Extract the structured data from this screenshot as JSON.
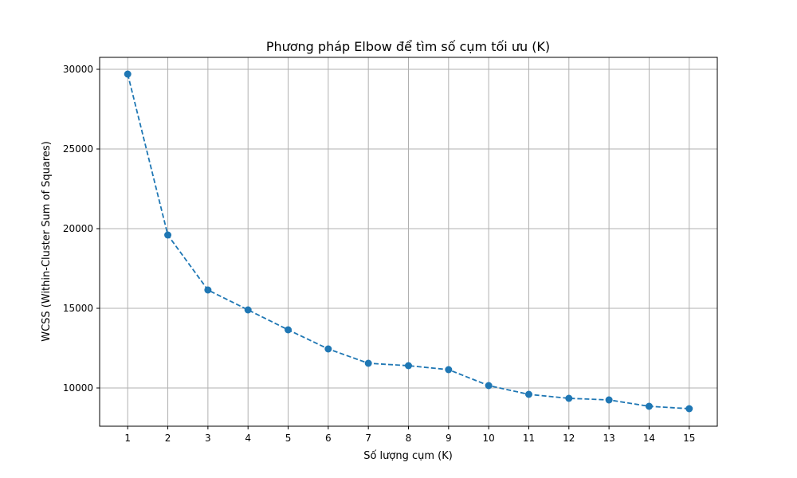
{
  "chart_data": {
    "type": "line",
    "title": "Phương pháp Elbow để tìm số cụm tối ưu (K)",
    "xlabel": "Số lượng cụm (K)",
    "ylabel": "WCSS (Within-Cluster Sum of Squares)",
    "x": [
      1,
      2,
      3,
      4,
      5,
      6,
      7,
      8,
      9,
      10,
      11,
      12,
      13,
      14,
      15
    ],
    "series": [
      {
        "values": [
          29700,
          19600,
          16150,
          14900,
          13650,
          12450,
          11550,
          11400,
          11150,
          10150,
          9600,
          9350,
          9250,
          8850,
          8700
        ],
        "color": "#1f77b4",
        "line_style": "dashed",
        "marker": "circle"
      }
    ],
    "xlim": [
      0.3,
      15.7
    ],
    "ylim": [
      7600,
      30750
    ],
    "xticks": [
      1,
      2,
      3,
      4,
      5,
      6,
      7,
      8,
      9,
      10,
      11,
      12,
      13,
      14,
      15
    ],
    "yticks": [
      10000,
      15000,
      20000,
      25000,
      30000
    ],
    "grid": true
  }
}
